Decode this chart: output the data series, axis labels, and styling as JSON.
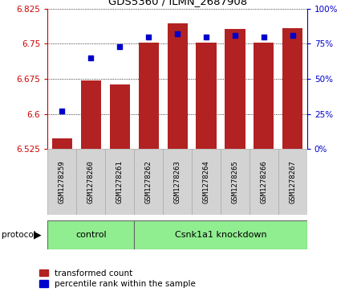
{
  "title": "GDS5360 / ILMN_2687908",
  "samples": [
    "GSM1278259",
    "GSM1278260",
    "GSM1278261",
    "GSM1278262",
    "GSM1278263",
    "GSM1278264",
    "GSM1278265",
    "GSM1278266",
    "GSM1278267"
  ],
  "transformed_count": [
    6.548,
    6.671,
    6.663,
    6.752,
    6.793,
    6.752,
    6.782,
    6.752,
    6.783
  ],
  "percentile_rank": [
    27,
    65,
    73,
    80,
    82,
    80,
    81,
    80,
    81
  ],
  "bar_color": "#B22222",
  "dot_color": "#0000CC",
  "ylim_left": [
    6.525,
    6.825
  ],
  "ylim_right": [
    0,
    100
  ],
  "yticks_left": [
    6.525,
    6.6,
    6.675,
    6.75,
    6.825
  ],
  "yticks_right": [
    0,
    25,
    50,
    75,
    100
  ],
  "baseline": 6.525,
  "control_count": 3,
  "control_label": "control",
  "treatment_label": "Csnk1a1 knockdown",
  "protocol_label": "protocol",
  "legend_bar_label": "transformed count",
  "legend_dot_label": "percentile rank within the sample",
  "bar_width": 0.7,
  "left_axis_color": "#CC0000",
  "right_axis_color": "#0000CC",
  "xticklabel_bg": "#D3D3D3",
  "xticklabel_edgecolor": "#AAAAAA",
  "protocol_bg": "#90EE90",
  "protocol_edge": "#666666"
}
